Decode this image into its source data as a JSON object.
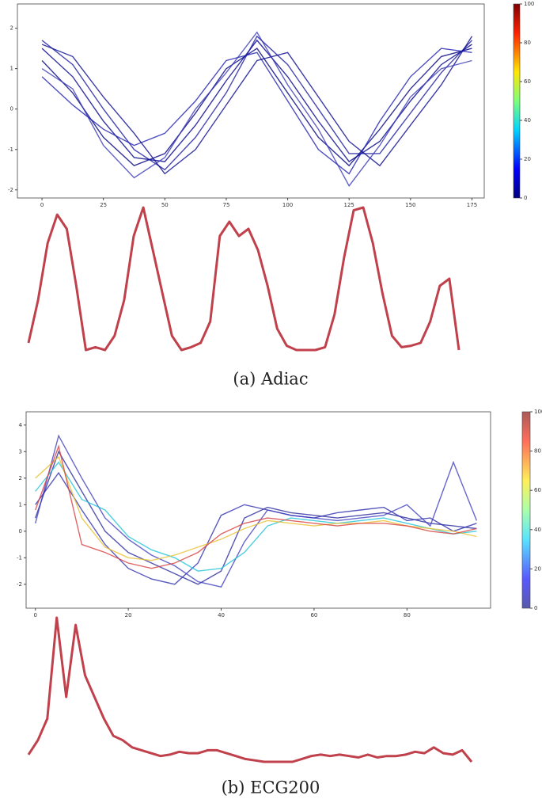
{
  "chart_data": [
    {
      "type": "line",
      "x": [
        0,
        12.5,
        25,
        37.5,
        50,
        62.5,
        75,
        87.5,
        100,
        112.5,
        125,
        137.5,
        150,
        162.5,
        175
      ],
      "series": [
        {
          "color": "#00008b",
          "values": [
            1.5,
            0.8,
            -0.3,
            -1.2,
            -1.3,
            -0.4,
            0.7,
            1.7,
            0.8,
            -0.3,
            -1.3,
            -0.8,
            0.2,
            1.1,
            1.6
          ]
        },
        {
          "color": "#000080",
          "values": [
            1.2,
            0.4,
            -0.7,
            -1.4,
            -1.1,
            -0.1,
            1.0,
            1.5,
            0.4,
            -0.7,
            -1.4,
            -0.5,
            0.5,
            1.3,
            1.5
          ]
        },
        {
          "color": "#1a1aa0",
          "values": [
            1.7,
            1.1,
            0.0,
            -1.0,
            -1.5,
            -0.7,
            0.4,
            1.8,
            1.1,
            0.0,
            -1.1,
            -1.1,
            -0.1,
            0.9,
            1.7
          ]
        },
        {
          "color": "#2020b0",
          "values": [
            0.8,
            0.1,
            -0.5,
            -0.9,
            -0.6,
            0.2,
            1.2,
            1.4,
            0.2,
            -1.0,
            -1.6,
            -0.3,
            0.8,
            1.5,
            1.4
          ]
        },
        {
          "color": "#0a0a90",
          "values": [
            1.6,
            1.3,
            0.3,
            -0.6,
            -1.6,
            -1.0,
            0.1,
            1.2,
            1.4,
            0.3,
            -0.8,
            -1.4,
            -0.4,
            0.6,
            1.8
          ]
        },
        {
          "color": "#3a3ab8",
          "values": [
            1.0,
            0.5,
            -0.9,
            -1.7,
            -1.2,
            0.0,
            0.9,
            1.9,
            0.6,
            -0.5,
            -1.9,
            -0.9,
            0.3,
            1.0,
            1.2
          ]
        }
      ],
      "xlim": [
        -10,
        180
      ],
      "ylim": [
        -2.2,
        2.6
      ],
      "xticks": [
        0,
        25,
        50,
        75,
        100,
        125,
        150,
        175
      ],
      "yticks": [
        -2,
        -1,
        0,
        1,
        2
      ],
      "colorbar": {
        "lim": [
          0,
          100
        ],
        "ticks": [
          0,
          20,
          40,
          60,
          80,
          100
        ]
      }
    },
    {
      "type": "curve",
      "color": "#c0414b",
      "values": [
        5,
        35,
        75,
        95,
        85,
        45,
        0,
        2,
        0,
        10,
        35,
        80,
        100,
        70,
        40,
        10,
        0,
        2,
        5,
        20,
        80,
        90,
        80,
        85,
        70,
        45,
        15,
        3,
        0,
        0,
        0,
        2,
        25,
        65,
        98,
        100,
        75,
        40,
        10,
        2,
        3,
        5,
        20,
        45,
        50,
        0
      ],
      "caption": "(a) Adiac"
    },
    {
      "type": "line",
      "x": [
        0,
        5,
        10,
        15,
        20,
        25,
        30,
        35,
        40,
        45,
        50,
        55,
        60,
        65,
        70,
        75,
        80,
        85,
        90,
        95
      ],
      "series": [
        {
          "color": "#2a2aa0",
          "values": [
            0.5,
            3.0,
            1.5,
            0.0,
            -0.8,
            -1.2,
            -1.6,
            -2.0,
            -1.5,
            0.5,
            0.9,
            0.7,
            0.6,
            0.5,
            0.6,
            0.7,
            0.5,
            0.3,
            0.2,
            0.1
          ]
        },
        {
          "color": "#3030b0",
          "values": [
            1.0,
            2.2,
            0.8,
            -0.5,
            -1.4,
            -1.8,
            -2.0,
            -1.2,
            0.6,
            1.0,
            0.8,
            0.6,
            0.5,
            0.7,
            0.8,
            0.9,
            0.4,
            0.5,
            0.0,
            0.3
          ]
        },
        {
          "color": "#4040c0",
          "values": [
            0.3,
            3.6,
            2.0,
            0.5,
            -0.3,
            -0.9,
            -1.3,
            -1.9,
            -2.1,
            -0.4,
            0.8,
            0.6,
            0.5,
            0.4,
            0.5,
            0.6,
            1.0,
            0.2,
            2.6,
            0.4
          ]
        },
        {
          "color": "#22c4d8",
          "values": [
            1.5,
            2.6,
            1.2,
            0.8,
            -0.2,
            -0.7,
            -1.0,
            -1.5,
            -1.4,
            -0.8,
            0.2,
            0.5,
            0.4,
            0.3,
            0.4,
            0.5,
            0.3,
            0.1,
            -0.1,
            0.0
          ]
        },
        {
          "color": "#e8c030",
          "values": [
            2.0,
            2.8,
            0.5,
            -0.6,
            -1.0,
            -1.1,
            -0.9,
            -0.6,
            -0.3,
            0.1,
            0.4,
            0.3,
            0.2,
            0.3,
            0.3,
            0.4,
            0.2,
            0.1,
            0.0,
            -0.2
          ]
        },
        {
          "color": "#d84040",
          "values": [
            0.8,
            3.2,
            -0.5,
            -0.8,
            -1.2,
            -1.4,
            -1.2,
            -0.8,
            -0.1,
            0.3,
            0.5,
            0.4,
            0.3,
            0.2,
            0.3,
            0.3,
            0.2,
            0.0,
            -0.1,
            0.1
          ]
        }
      ],
      "xlim": [
        -2,
        98
      ],
      "ylim": [
        -2.9,
        4.5
      ],
      "xticks": [
        0,
        20,
        40,
        60,
        80
      ],
      "yticks": [
        -2,
        -1,
        0,
        1,
        2,
        3,
        4
      ],
      "colorbar": {
        "lim": [
          0,
          100
        ],
        "ticks": [
          0,
          20,
          40,
          60,
          80,
          100
        ]
      }
    },
    {
      "type": "curve",
      "color": "#c0414b",
      "values": [
        5,
        15,
        30,
        100,
        45,
        95,
        60,
        45,
        30,
        18,
        15,
        10,
        8,
        6,
        4,
        5,
        7,
        6,
        6,
        8,
        8,
        6,
        4,
        2,
        1,
        0,
        0,
        0,
        0,
        2,
        4,
        5,
        4,
        5,
        4,
        3,
        5,
        3,
        4,
        4,
        5,
        7,
        6,
        10,
        6,
        5,
        8,
        0
      ],
      "caption": "(b) ECG200"
    }
  ]
}
